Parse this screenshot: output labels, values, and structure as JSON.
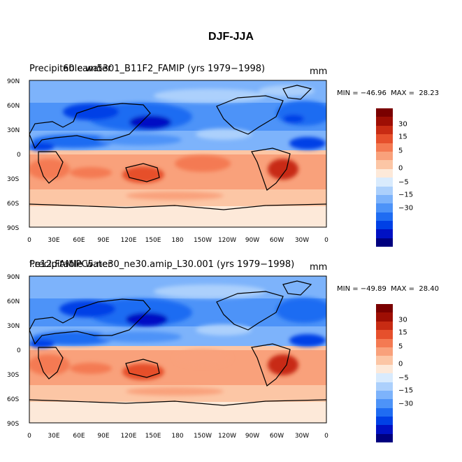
{
  "title": "DJF-JJA",
  "colorbar": {
    "colors": [
      "#00007f",
      "#0011c4",
      "#0040e6",
      "#1f6cf2",
      "#4d93f8",
      "#7db3fb",
      "#acd0fc",
      "#d9ebfd",
      "#fde9d9",
      "#fcc6a5",
      "#f9a17b",
      "#f47a52",
      "#e6502c",
      "#c82b13",
      "#9e0e04",
      "#7a0000"
    ],
    "labels": [
      "30",
      "15",
      "5",
      "0",
      "-5",
      "-15",
      "-30"
    ]
  },
  "axes": {
    "lat_labels": [
      "90N",
      "60N",
      "30N",
      "0",
      "30S",
      "60S",
      "90S"
    ],
    "lon_labels": [
      "0",
      "30E",
      "60E",
      "90E",
      "120E",
      "150E",
      "180",
      "150W",
      "120W",
      "90W",
      "60W",
      "30W",
      "0"
    ]
  },
  "panels": [
    {
      "title_left": "Precipitable water",
      "title_overlay": "60.cam5301_B11F2_FAMIP (yrs 1979−1998)",
      "units": "mm",
      "min_max": "MIN = −46.96  MAX =  28.23"
    },
    {
      "title_left": "Precipitable water",
      "title_overlay": "f.e12.FAMIPC5.ne30_ne30.amip_L30.001 (yrs 1979−1998)",
      "units": "mm",
      "min_max": "MIN = −49.89  MAX =  28.40"
    }
  ]
}
